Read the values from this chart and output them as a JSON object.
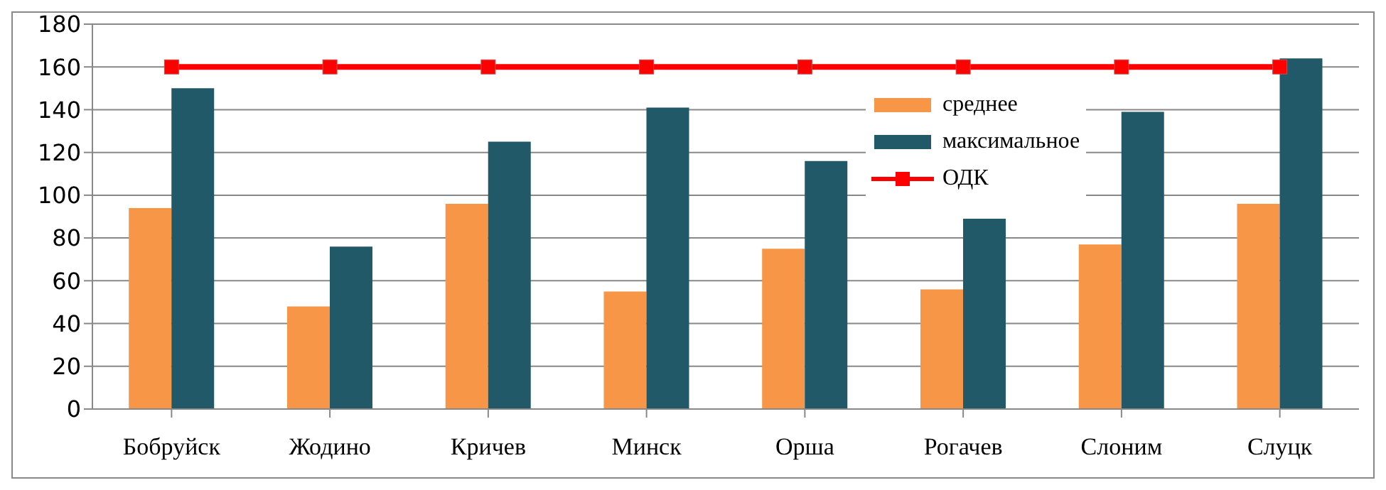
{
  "chart_data": {
    "type": "bar",
    "categories": [
      "Бобруйск",
      "Жодино",
      "Кричев",
      "Минск",
      "Орша",
      "Рогачев",
      "Слоним",
      "Слуцк"
    ],
    "series": [
      {
        "name": "среднее",
        "color": "#f79646",
        "values": [
          94,
          48,
          96,
          55,
          75,
          56,
          77,
          96
        ]
      },
      {
        "name": "максимальное",
        "color": "#215968",
        "values": [
          150,
          76,
          125,
          141,
          116,
          89,
          139,
          164
        ]
      },
      {
        "name": "ОДК",
        "type": "line",
        "color": "#ff0000",
        "marker": "square",
        "values": [
          160,
          160,
          160,
          160,
          160,
          160,
          160,
          160
        ]
      }
    ],
    "ylim": [
      0,
      180
    ],
    "yticks": [
      0,
      20,
      40,
      60,
      80,
      100,
      120,
      140,
      160,
      180
    ],
    "grid": "y",
    "legend": "right"
  }
}
